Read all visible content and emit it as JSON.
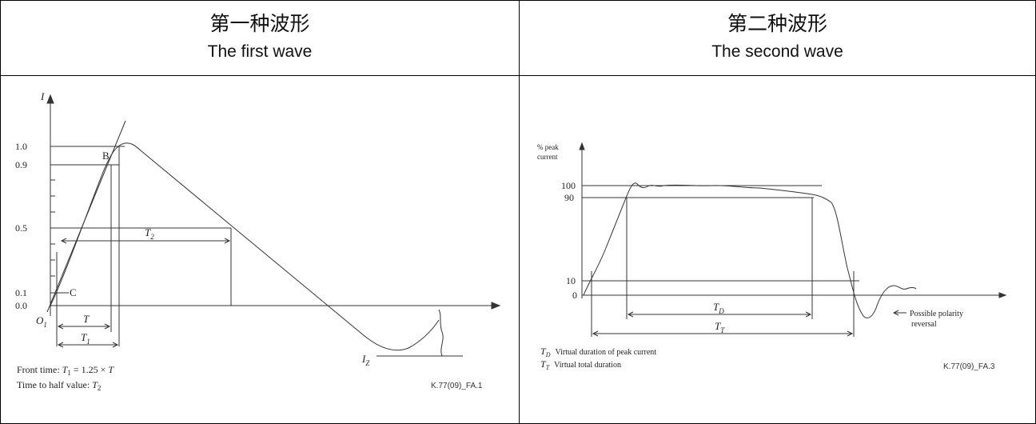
{
  "columns": [
    {
      "title_zh": "第一种波形",
      "title_en": "The first wave"
    },
    {
      "title_zh": "第二种波形",
      "title_en": "The second wave"
    }
  ],
  "wave1": {
    "axis_label_i": "I",
    "ticks": [
      "1.0",
      "0.9",
      "0.5",
      "0.1",
      "0.0"
    ],
    "point_b": "B",
    "point_c": "C",
    "origin": "O",
    "origin_sub": "1",
    "t2_main": "T",
    "t2_sub": "2",
    "t_label": "T",
    "t1_main": "T",
    "t1_sub": "1",
    "iz_main": "I",
    "iz_sub": "Z",
    "legend_front_prefix": "Front time: ",
    "legend_front_t": "T",
    "legend_front_sub": "1",
    "legend_front_suffix": " = 1.25 × ",
    "legend_front_t2": "T",
    "legend_half_prefix": "Time to half value: ",
    "legend_half_t": "T",
    "legend_half_sub": "2",
    "ref": "K.77(09)_FA.1"
  },
  "wave2": {
    "ylabel_line1": "% peak",
    "ylabel_line2": "current",
    "ticks": [
      "100",
      "90",
      "10",
      "0"
    ],
    "td_main": "T",
    "td_sub": "D",
    "tt_main": "T",
    "tt_sub": "T",
    "polarity_line1": "Possible polarity",
    "polarity_line2": "reversal",
    "legend_td_desc": "Virtual duration of peak current",
    "legend_tt_desc": "Virtual total duration",
    "ref": "K.77(09)_FA.3"
  }
}
